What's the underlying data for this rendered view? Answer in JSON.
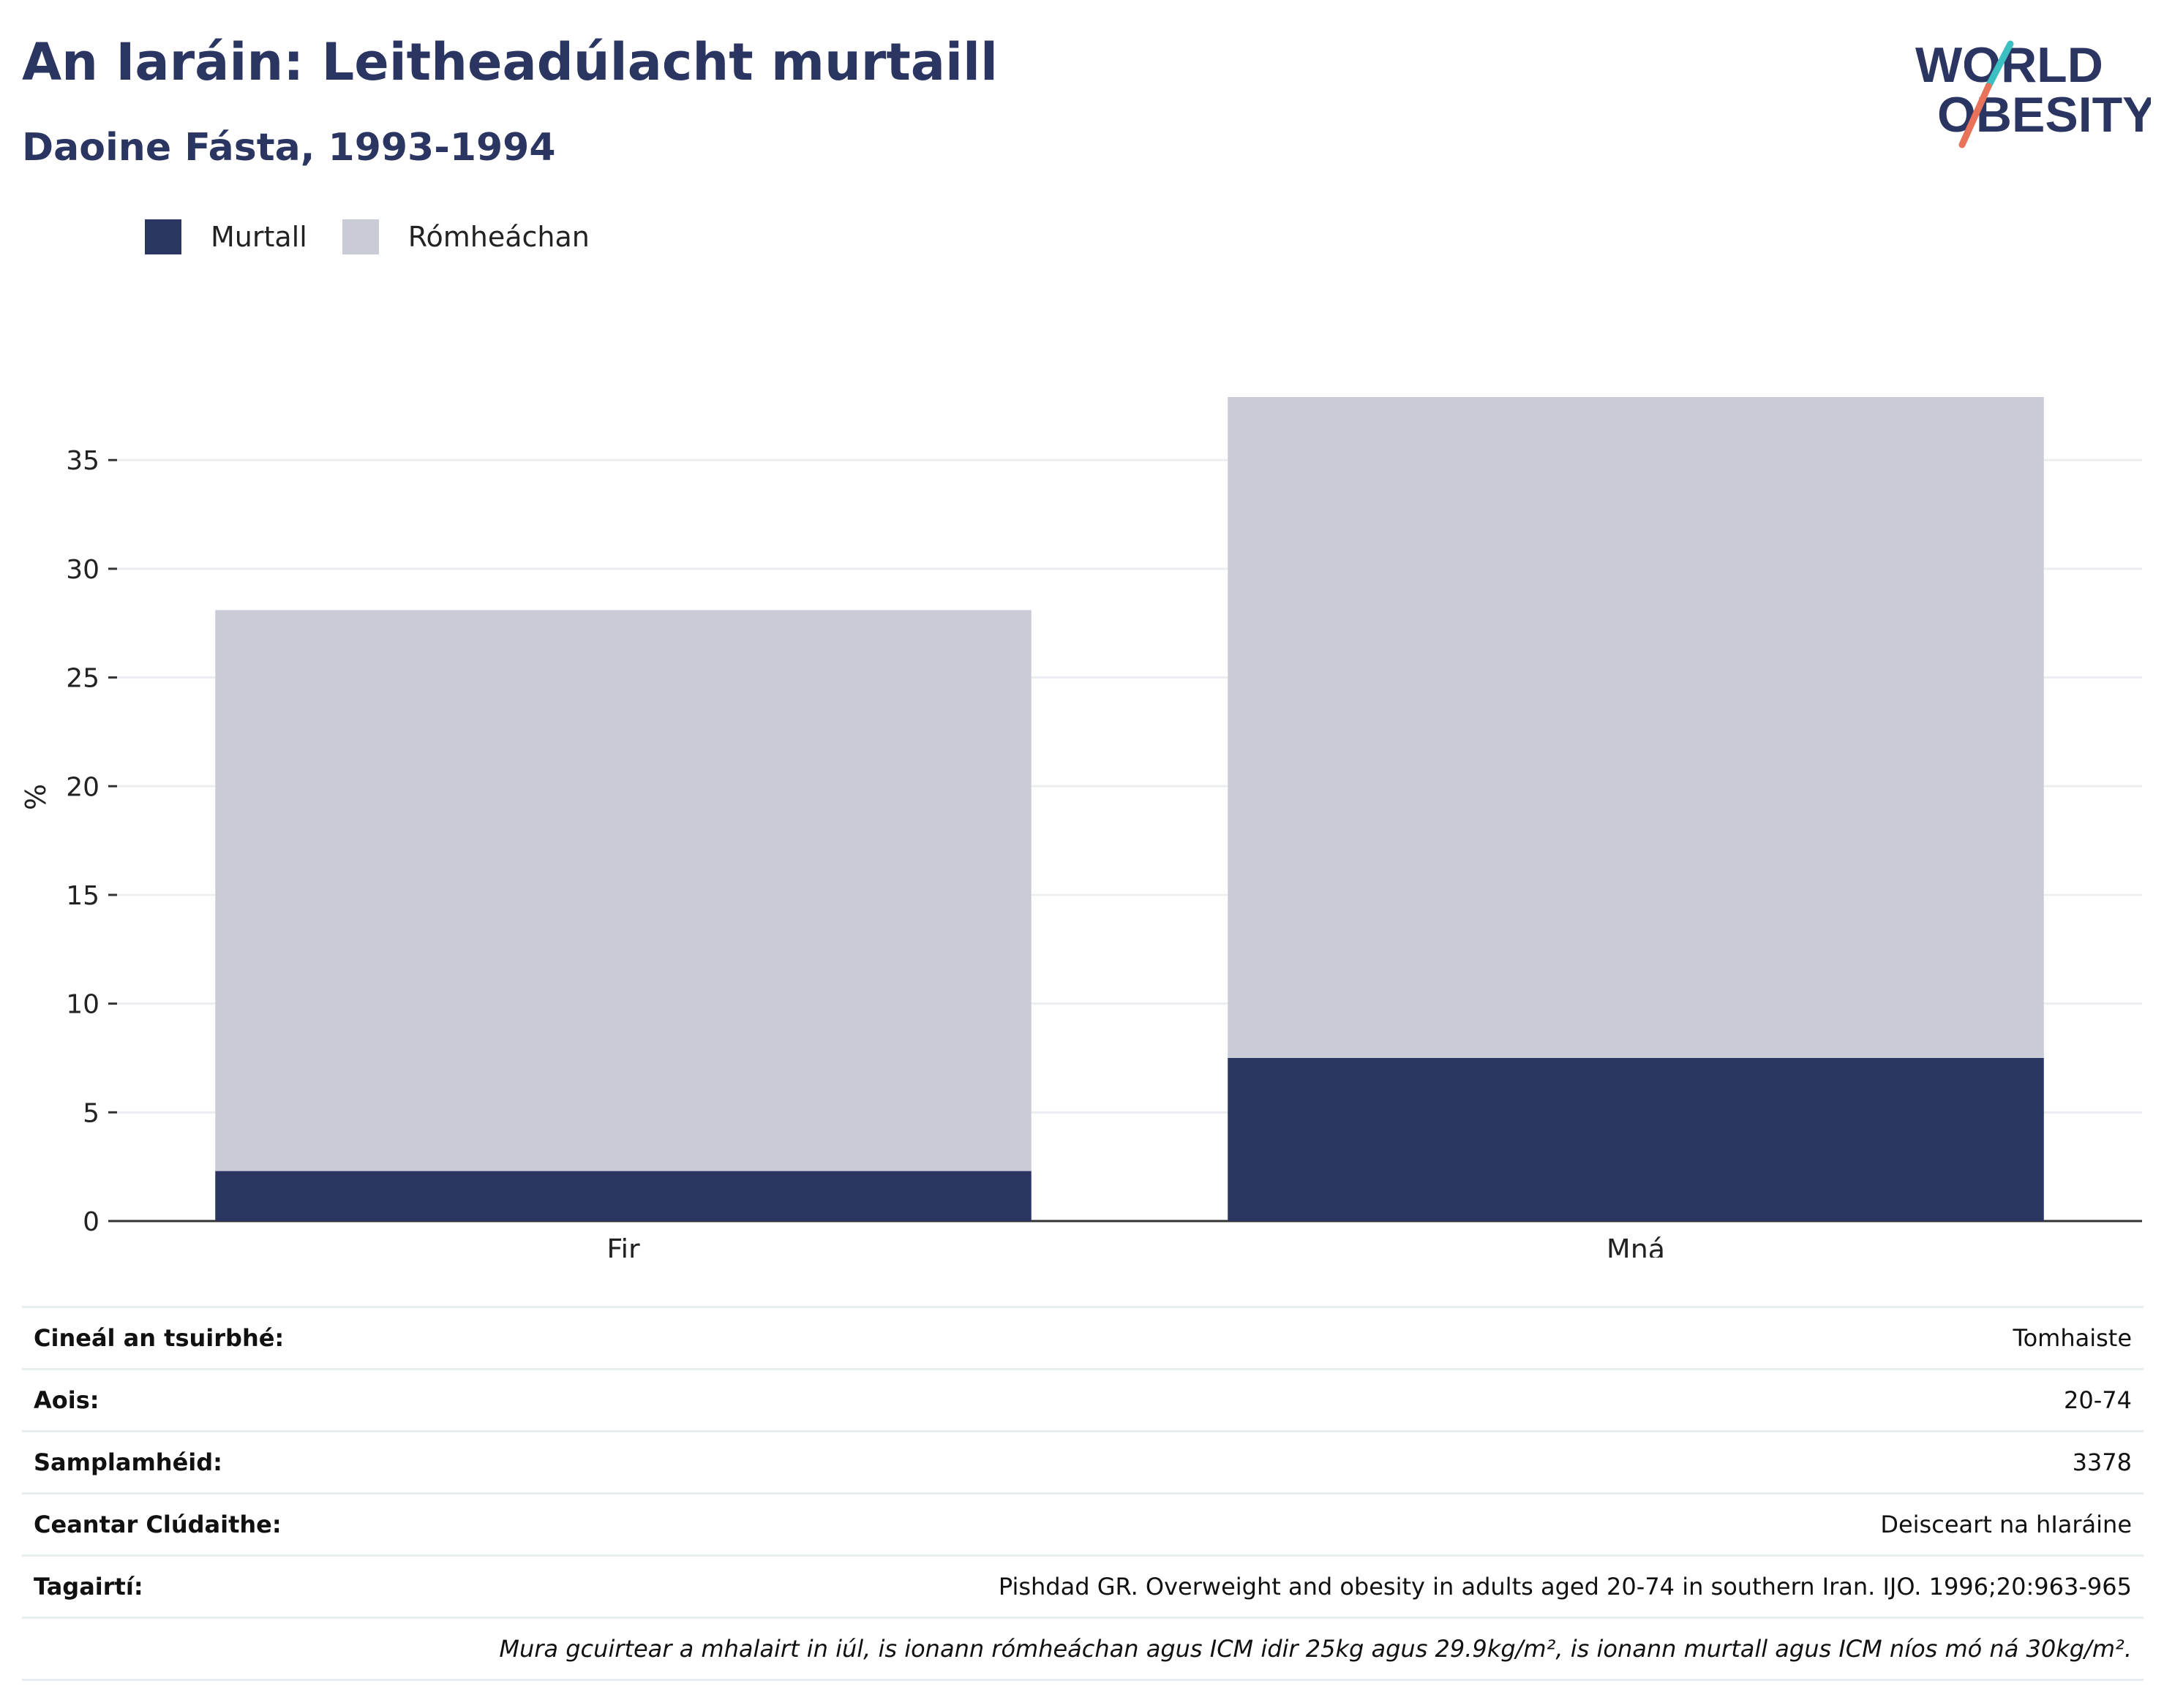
{
  "header": {
    "title": "An Iaráin: Leitheadúlacht murtaill",
    "subtitle": "Daoine Fásta, 1993-1994"
  },
  "logo": {
    "line1": "WORLD",
    "line2": "OBESITY",
    "colors": {
      "text": "#2a3562",
      "teal": "#3bbfc1",
      "coral": "#e8735a"
    }
  },
  "chart_data": {
    "type": "bar",
    "stacked": true,
    "categories": [
      "Fir",
      "Mná"
    ],
    "series": [
      {
        "name": "Murtall",
        "values": [
          2.3,
          7.5
        ],
        "color": "#2a3562"
      },
      {
        "name": "Rómheáchan",
        "values": [
          25.8,
          30.4
        ],
        "color": "#c9ccd7"
      }
    ],
    "ylabel": "%",
    "ylim": [
      0,
      38
    ],
    "yticks": [
      0,
      5,
      10,
      15,
      20,
      25,
      30,
      35
    ],
    "grid": true,
    "legend_position": "top-left"
  },
  "info": {
    "rows": [
      {
        "label": "Cineál an tsuirbhé:",
        "value": "Tomhaiste"
      },
      {
        "label": "Aois:",
        "value": "20-74"
      },
      {
        "label": "Samplamhéid:",
        "value": "3378"
      },
      {
        "label": "Ceantar Clúdaithe:",
        "value": "Deisceart na hIaráine"
      },
      {
        "label": "Tagairtí:",
        "value": "Pishdad GR. Overweight and obesity in adults aged 20-74 in southern Iran. IJO. 1996;20:963-965"
      }
    ],
    "note": "Mura gcuirtear a mhalairt in iúl, is ionann rómheáchan agus ICM idir 25kg agus 29.9kg/m², is ionann murtall agus ICM níos mó ná 30kg/m²."
  }
}
